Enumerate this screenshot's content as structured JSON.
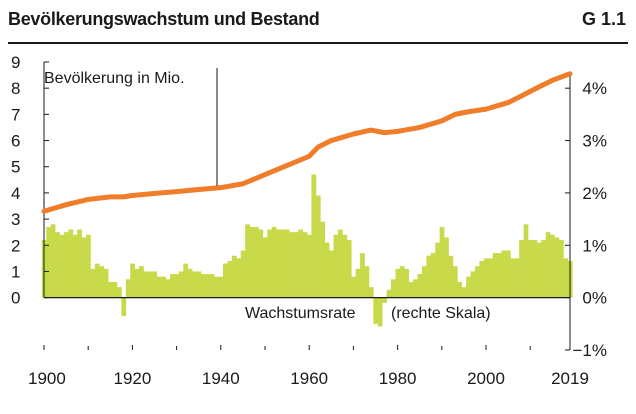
{
  "header": {
    "title": "Bevölkerungswachstum und Bestand",
    "code": "G 1.1"
  },
  "chart_data": {
    "type": "bar+line",
    "x_ticks": [
      "1900",
      "1920",
      "1940",
      "1960",
      "1980",
      "2000",
      "2019"
    ],
    "y_left": {
      "ticks": [
        "0",
        "1",
        "2",
        "3",
        "4",
        "5",
        "6",
        "7",
        "8",
        "9"
      ],
      "range": [
        -2,
        9
      ]
    },
    "y_right": {
      "ticks": [
        "−1%",
        "0%",
        "1%",
        "2%",
        "3%",
        "4%"
      ],
      "range": [
        -1,
        4.5
      ]
    },
    "colors": {
      "line": "#f07d2a",
      "bars": "#c8d94a",
      "axis": "#1a1a1a"
    },
    "annotations": {
      "population_label": "Bevölkerung in Mio.",
      "growth_label": "Wachstumsrate",
      "growth_note": "(rechte Skala)"
    },
    "series": [
      {
        "name": "Bevölkerung in Mio.",
        "axis": "left",
        "type": "line",
        "points": [
          [
            1900,
            3.3
          ],
          [
            1905,
            3.55
          ],
          [
            1910,
            3.75
          ],
          [
            1915,
            3.85
          ],
          [
            1918,
            3.85
          ],
          [
            1920,
            3.9
          ],
          [
            1925,
            3.98
          ],
          [
            1930,
            4.05
          ],
          [
            1935,
            4.13
          ],
          [
            1940,
            4.2
          ],
          [
            1945,
            4.35
          ],
          [
            1950,
            4.7
          ],
          [
            1955,
            5.05
          ],
          [
            1960,
            5.4
          ],
          [
            1962,
            5.75
          ],
          [
            1965,
            6.0
          ],
          [
            1970,
            6.25
          ],
          [
            1974,
            6.4
          ],
          [
            1977,
            6.3
          ],
          [
            1980,
            6.35
          ],
          [
            1985,
            6.5
          ],
          [
            1990,
            6.75
          ],
          [
            1993,
            7.0
          ],
          [
            1996,
            7.1
          ],
          [
            2000,
            7.2
          ],
          [
            2005,
            7.45
          ],
          [
            2008,
            7.7
          ],
          [
            2012,
            8.05
          ],
          [
            2015,
            8.3
          ],
          [
            2019,
            8.55
          ]
        ]
      },
      {
        "name": "Wachstumsrate",
        "axis": "right",
        "type": "bar",
        "x": [
          1900,
          1901,
          1902,
          1903,
          1904,
          1905,
          1906,
          1907,
          1908,
          1909,
          1910,
          1911,
          1912,
          1913,
          1914,
          1915,
          1916,
          1917,
          1918,
          1919,
          1920,
          1921,
          1922,
          1923,
          1924,
          1925,
          1926,
          1927,
          1928,
          1929,
          1930,
          1931,
          1932,
          1933,
          1934,
          1935,
          1936,
          1937,
          1938,
          1939,
          1940,
          1941,
          1942,
          1943,
          1944,
          1945,
          1946,
          1947,
          1948,
          1949,
          1950,
          1951,
          1952,
          1953,
          1954,
          1955,
          1956,
          1957,
          1958,
          1959,
          1960,
          1961,
          1962,
          1963,
          1964,
          1965,
          1966,
          1967,
          1968,
          1969,
          1970,
          1971,
          1972,
          1973,
          1974,
          1975,
          1976,
          1977,
          1978,
          1979,
          1980,
          1981,
          1982,
          1983,
          1984,
          1985,
          1986,
          1987,
          1988,
          1989,
          1990,
          1991,
          1992,
          1993,
          1994,
          1995,
          1996,
          1997,
          1998,
          1999,
          2000,
          2001,
          2002,
          2003,
          2004,
          2005,
          2006,
          2007,
          2008,
          2009,
          2010,
          2011,
          2012,
          2013,
          2014,
          2015,
          2016,
          2017,
          2018,
          2019
        ],
        "values": [
          1.1,
          1.35,
          1.4,
          1.25,
          1.2,
          1.25,
          1.3,
          1.2,
          1.3,
          1.15,
          1.2,
          0.55,
          0.65,
          0.6,
          0.55,
          0.3,
          0.3,
          0.2,
          -0.35,
          0.35,
          0.65,
          0.55,
          0.6,
          0.5,
          0.5,
          0.5,
          0.4,
          0.4,
          0.35,
          0.45,
          0.45,
          0.5,
          0.65,
          0.55,
          0.5,
          0.5,
          0.45,
          0.45,
          0.45,
          0.4,
          0.4,
          0.65,
          0.7,
          0.8,
          0.75,
          0.9,
          1.4,
          1.35,
          1.35,
          1.3,
          1.15,
          1.3,
          1.35,
          1.3,
          1.3,
          1.3,
          1.25,
          1.25,
          1.3,
          1.25,
          1.2,
          2.35,
          1.95,
          1.45,
          1.05,
          0.9,
          1.2,
          1.3,
          1.2,
          1.1,
          0.4,
          0.55,
          0.85,
          0.6,
          0.2,
          -0.5,
          -0.55,
          -0.1,
          0.15,
          0.35,
          0.55,
          0.6,
          0.55,
          0.3,
          0.35,
          0.45,
          0.6,
          0.8,
          0.85,
          1.05,
          1.35,
          1.15,
          0.8,
          0.6,
          0.3,
          0.2,
          0.4,
          0.5,
          0.6,
          0.7,
          0.75,
          0.75,
          0.85,
          0.85,
          0.9,
          0.9,
          0.75,
          0.75,
          1.1,
          1.4,
          1.1,
          1.1,
          1.05,
          1.1,
          1.25,
          1.2,
          1.15,
          1.1,
          0.75,
          0.7
        ]
      }
    ]
  }
}
